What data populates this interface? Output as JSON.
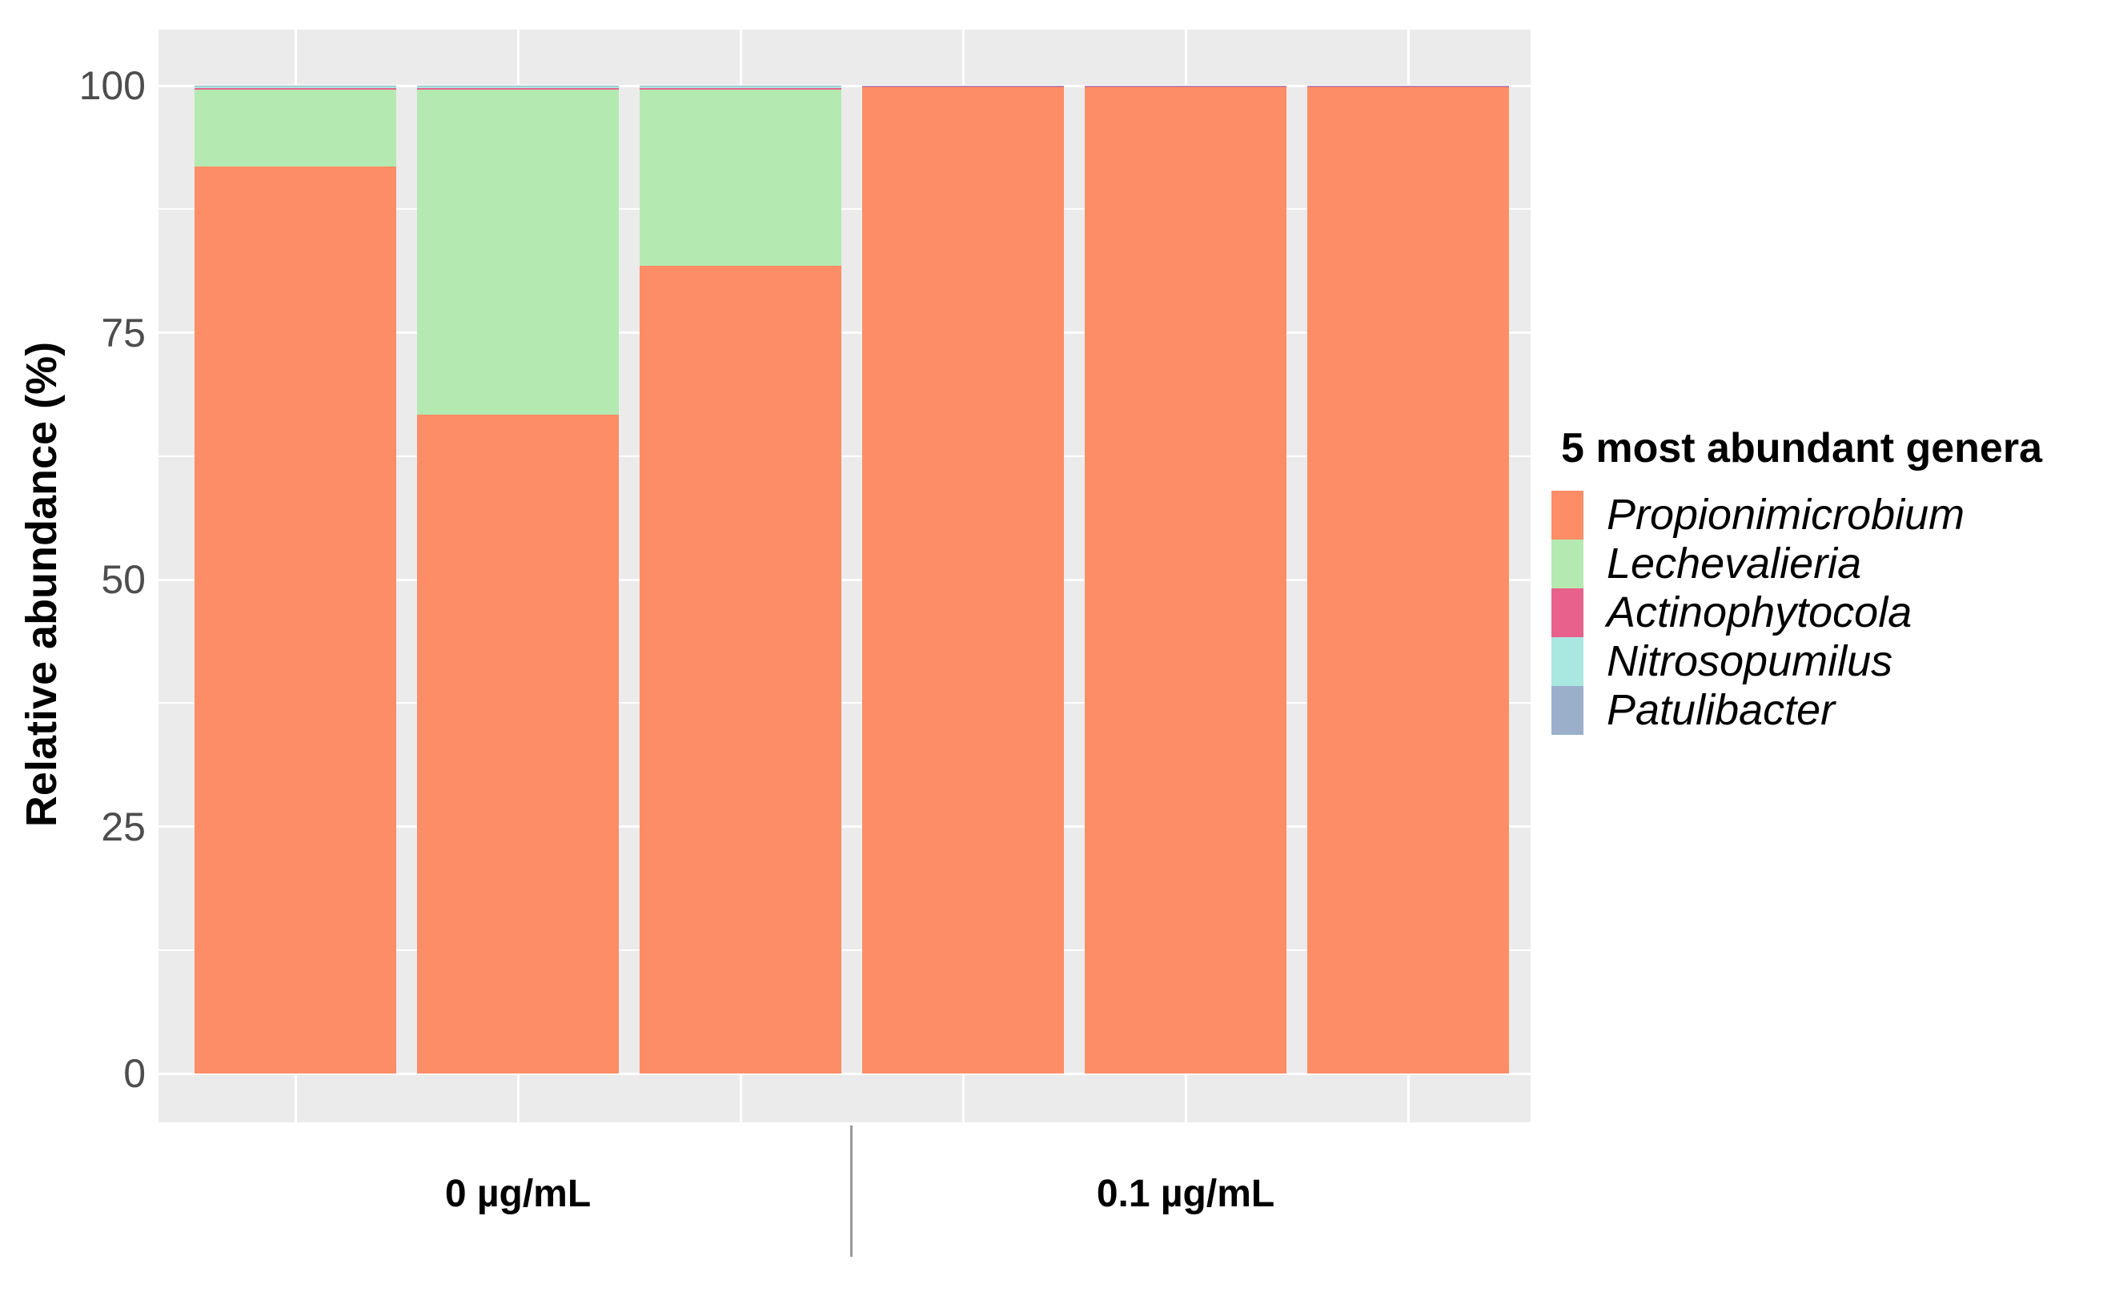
{
  "chart_data": {
    "type": "bar",
    "stacked": true,
    "orientation": "vertical",
    "title": "",
    "xlabel": "",
    "ylabel": "Relative abundance (%)",
    "ylim": [
      0,
      100
    ],
    "yticks": [
      0,
      25,
      50,
      75,
      100
    ],
    "grid": true,
    "panel_background": "gray",
    "legend_position": "right",
    "groups": [
      "0 µg/mL",
      "0.1 µg/mL"
    ],
    "bars_per_group": 3,
    "series": [
      {
        "name": "Propionimicrobium",
        "color": "#FC8D66",
        "values": [
          91.8,
          66.7,
          81.8,
          99.8,
          99.8,
          99.8
        ]
      },
      {
        "name": "Lechevalieria",
        "color": "#B4EAB1",
        "values": [
          7.8,
          32.9,
          17.8,
          0,
          0,
          0
        ]
      },
      {
        "name": "Actinophytocola",
        "color": "#E8618C",
        "values": [
          0.2,
          0.2,
          0.2,
          0.08,
          0.08,
          0.08
        ]
      },
      {
        "name": "Nitrosopumilus",
        "color": "#A9E8E0",
        "values": [
          0.12,
          0.12,
          0.12,
          0.06,
          0.06,
          0.06
        ]
      },
      {
        "name": "Patulibacter",
        "color": "#9BAFCB",
        "values": [
          0.1,
          0.1,
          0.1,
          0.06,
          0.06,
          0.06
        ]
      }
    ]
  },
  "legend": {
    "title": "5 most abundant genera"
  },
  "colors": {
    "panel_bg": "#EBEBEB",
    "grid": "#FFFFFF",
    "tick_label": "#4D4D4D",
    "axis_title": "#000000",
    "divider": "#999999"
  }
}
